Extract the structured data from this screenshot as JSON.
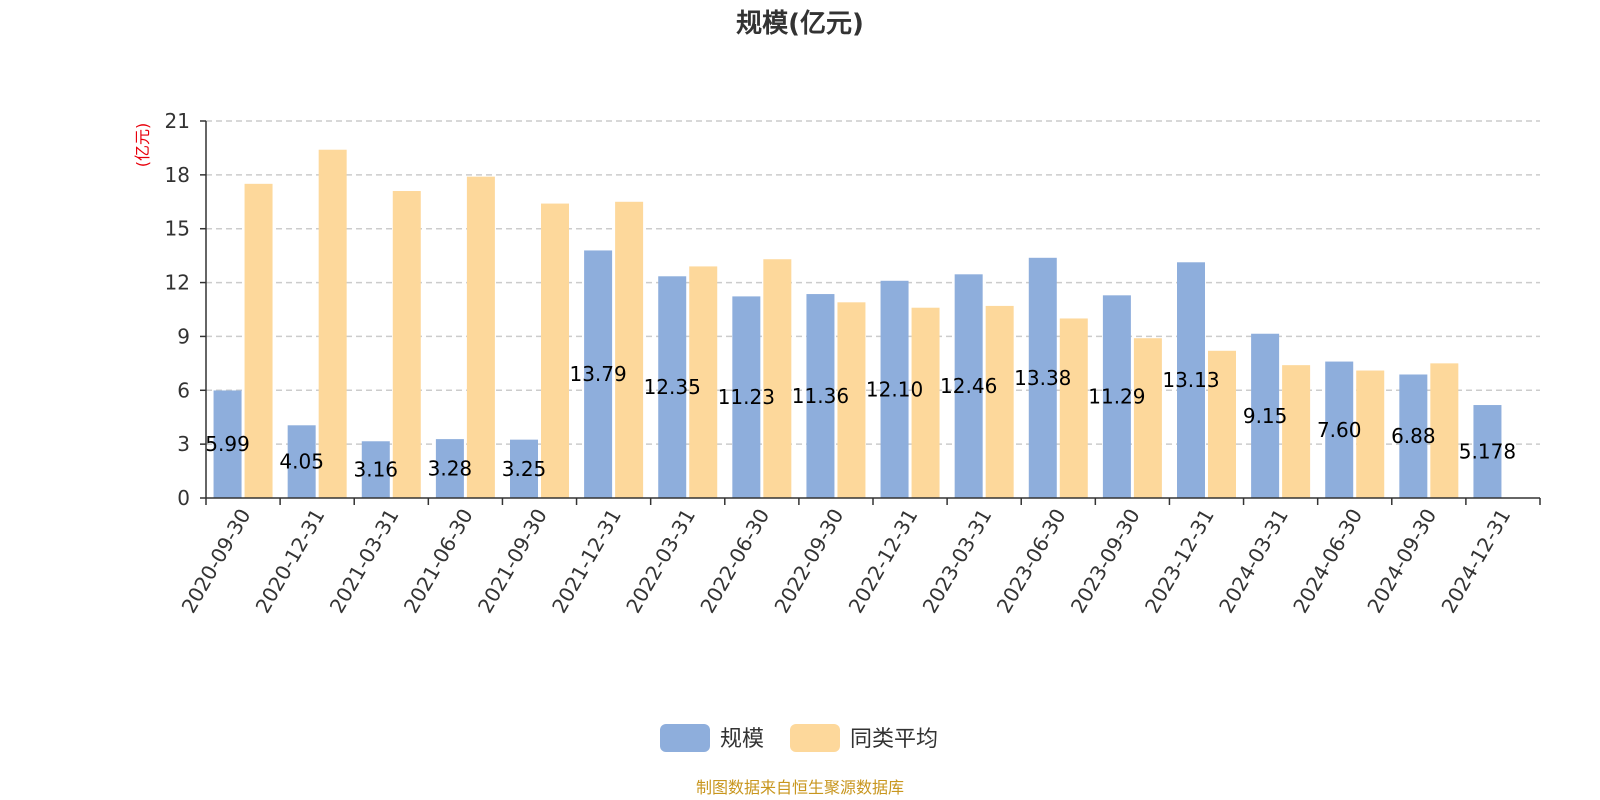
{
  "chart_data": {
    "type": "bar",
    "title": "规模(亿元)",
    "y_unit": "(亿元)",
    "categories": [
      "2020-09-30",
      "2020-12-31",
      "2021-03-31",
      "2021-06-30",
      "2021-09-30",
      "2021-12-31",
      "2022-03-31",
      "2022-06-30",
      "2022-09-30",
      "2022-12-31",
      "2023-03-31",
      "2023-06-30",
      "2023-09-30",
      "2023-12-31",
      "2024-03-31",
      "2024-06-30",
      "2024-09-30",
      "2024-12-31"
    ],
    "ylim": [
      0,
      21
    ],
    "yticks": [
      0,
      3,
      6,
      9,
      12,
      15,
      18,
      21
    ],
    "grid": true,
    "legend_position": "bottom-center",
    "series": [
      {
        "name": "规模",
        "color": "#8eaedc",
        "values": [
          5.99,
          4.05,
          3.16,
          3.28,
          3.25,
          13.79,
          12.35,
          11.23,
          11.36,
          12.1,
          12.46,
          13.38,
          11.29,
          13.13,
          9.15,
          7.6,
          6.88,
          5.178
        ],
        "labels": [
          "5.99",
          "4.05",
          "3.16",
          "3.28",
          "3.25",
          "13.79",
          "12.35",
          "11.23",
          "11.36",
          "12.10",
          "12.46",
          "13.38",
          "11.29",
          "13.13",
          "9.15",
          "7.60",
          "6.88",
          "5.178"
        ]
      },
      {
        "name": "同类平均",
        "color": "#fdd89b",
        "values": [
          17.5,
          19.4,
          17.1,
          17.9,
          16.4,
          16.5,
          12.9,
          13.3,
          10.9,
          10.6,
          10.7,
          10.0,
          8.9,
          8.2,
          7.4,
          7.1,
          7.5,
          null
        ]
      }
    ],
    "source": "制图数据来自恒生聚源数据库"
  }
}
